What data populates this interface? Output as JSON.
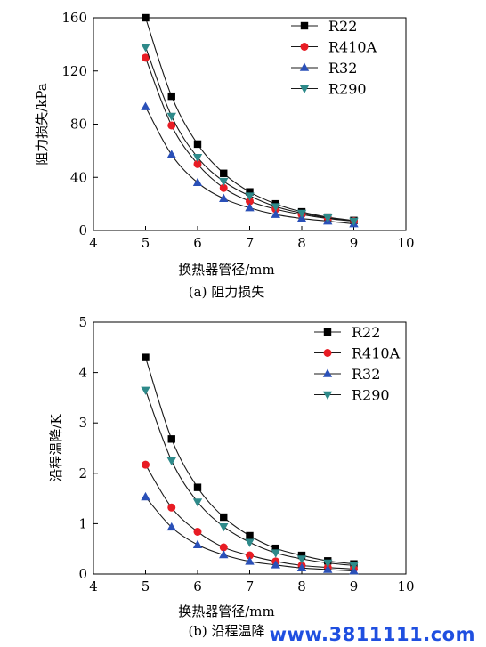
{
  "chart_data": [
    {
      "type": "line",
      "x": [
        5,
        5.5,
        6,
        6.5,
        7,
        7.5,
        8,
        8.5,
        9
      ],
      "xlim": [
        4,
        10
      ],
      "xticks": [
        4,
        5,
        6,
        7,
        8,
        9,
        10
      ],
      "ylim": [
        0,
        160
      ],
      "yticks": [
        0,
        40,
        80,
        120,
        160
      ],
      "xlabel": "换热器管径/mm",
      "ylabel": "阻力损失/kPa",
      "caption": "(a) 阻力损失",
      "legend_position": "top-right",
      "grid": false,
      "series": [
        {
          "name": "R22",
          "color": "#000000",
          "marker": "square",
          "values": [
            160,
            101,
            65,
            43,
            29,
            20,
            14,
            10,
            7.5
          ]
        },
        {
          "name": "R410A",
          "color": "#e81c24",
          "marker": "circle",
          "values": [
            130,
            79,
            50,
            32,
            22,
            16,
            12,
            9,
            7
          ]
        },
        {
          "name": "R32",
          "color": "#2a50b8",
          "marker": "triangle-up",
          "values": [
            93,
            57,
            36,
            24,
            17,
            12,
            9,
            7,
            5
          ]
        },
        {
          "name": "R290",
          "color": "#2e8a8a",
          "marker": "triangle-down",
          "values": [
            138,
            86,
            55,
            37,
            26,
            18,
            13,
            9.5,
            7
          ]
        }
      ]
    },
    {
      "type": "line",
      "x": [
        5,
        5.5,
        6,
        6.5,
        7,
        7.5,
        8,
        8.5,
        9
      ],
      "xlim": [
        4,
        10
      ],
      "xticks": [
        4,
        5,
        6,
        7,
        8,
        9,
        10
      ],
      "ylim": [
        0,
        5
      ],
      "yticks": [
        0,
        1,
        2,
        3,
        4,
        5
      ],
      "xlabel": "换热器管径/mm",
      "ylabel": "沿程温降/K",
      "caption": "(b) 沿程温降",
      "legend_position": "top-right",
      "grid": false,
      "series": [
        {
          "name": "R22",
          "color": "#000000",
          "marker": "square",
          "values": [
            4.3,
            2.68,
            1.72,
            1.13,
            0.76,
            0.51,
            0.37,
            0.26,
            0.2
          ]
        },
        {
          "name": "R410A",
          "color": "#e81c24",
          "marker": "circle",
          "values": [
            2.17,
            1.32,
            0.84,
            0.53,
            0.37,
            0.25,
            0.17,
            0.13,
            0.1
          ]
        },
        {
          "name": "R32",
          "color": "#2a50b8",
          "marker": "triangle-up",
          "values": [
            1.53,
            0.93,
            0.58,
            0.38,
            0.25,
            0.18,
            0.12,
            0.09,
            0.06
          ]
        },
        {
          "name": "R290",
          "color": "#2e8a8a",
          "marker": "triangle-down",
          "values": [
            3.65,
            2.25,
            1.43,
            0.94,
            0.63,
            0.42,
            0.3,
            0.22,
            0.17
          ]
        }
      ]
    }
  ],
  "watermark": "www.3811111.com"
}
